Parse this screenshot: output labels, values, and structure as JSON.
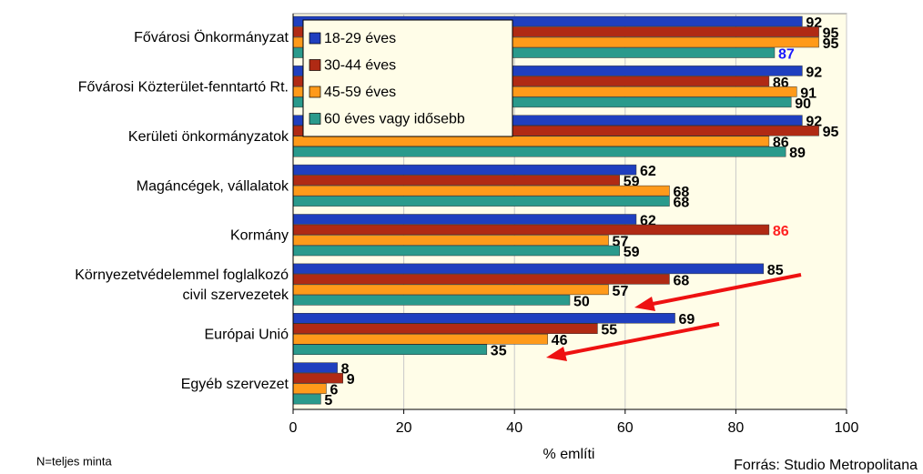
{
  "chart_data": {
    "type": "barh",
    "categories": [
      "Fővárosi Önkormányzat",
      "Fővárosi Közterület-fenntartó Rt.",
      "Kerületi önkormányzatok",
      "Magáncégek, vállalatok",
      "Kormány",
      "Környezetvédelemmel foglalkozó\ncivil szervezetek",
      "Európai Unió",
      "Egyéb szervezet"
    ],
    "series": [
      {
        "name": "18-29 éves",
        "color": "#1f3fbf",
        "values": [
          92,
          92,
          92,
          62,
          62,
          85,
          69,
          8
        ]
      },
      {
        "name": "30-44 éves",
        "color": "#b02a14",
        "values": [
          95,
          86,
          95,
          59,
          86,
          68,
          55,
          9
        ]
      },
      {
        "name": "45-59 éves",
        "color": "#ff9a1a",
        "values": [
          95,
          91,
          86,
          68,
          57,
          57,
          46,
          6
        ]
      },
      {
        "name": "60 éves vagy idősebb",
        "color": "#2a9a8c",
        "values": [
          87,
          90,
          89,
          68,
          59,
          50,
          35,
          5
        ]
      }
    ],
    "highlighted_labels": [
      {
        "series": 3,
        "index": 0,
        "color": "#1a1aff"
      },
      {
        "series": 1,
        "index": 4,
        "color": "#ff2020"
      }
    ],
    "xlim": [
      0,
      100
    ],
    "xticks": [
      0,
      20,
      40,
      60,
      80,
      100
    ],
    "grid": true,
    "xlabel": "% említi",
    "note": "N=teljes minta",
    "source": "Forrás: Studio Metropolitana",
    "legend": "upper-left"
  }
}
